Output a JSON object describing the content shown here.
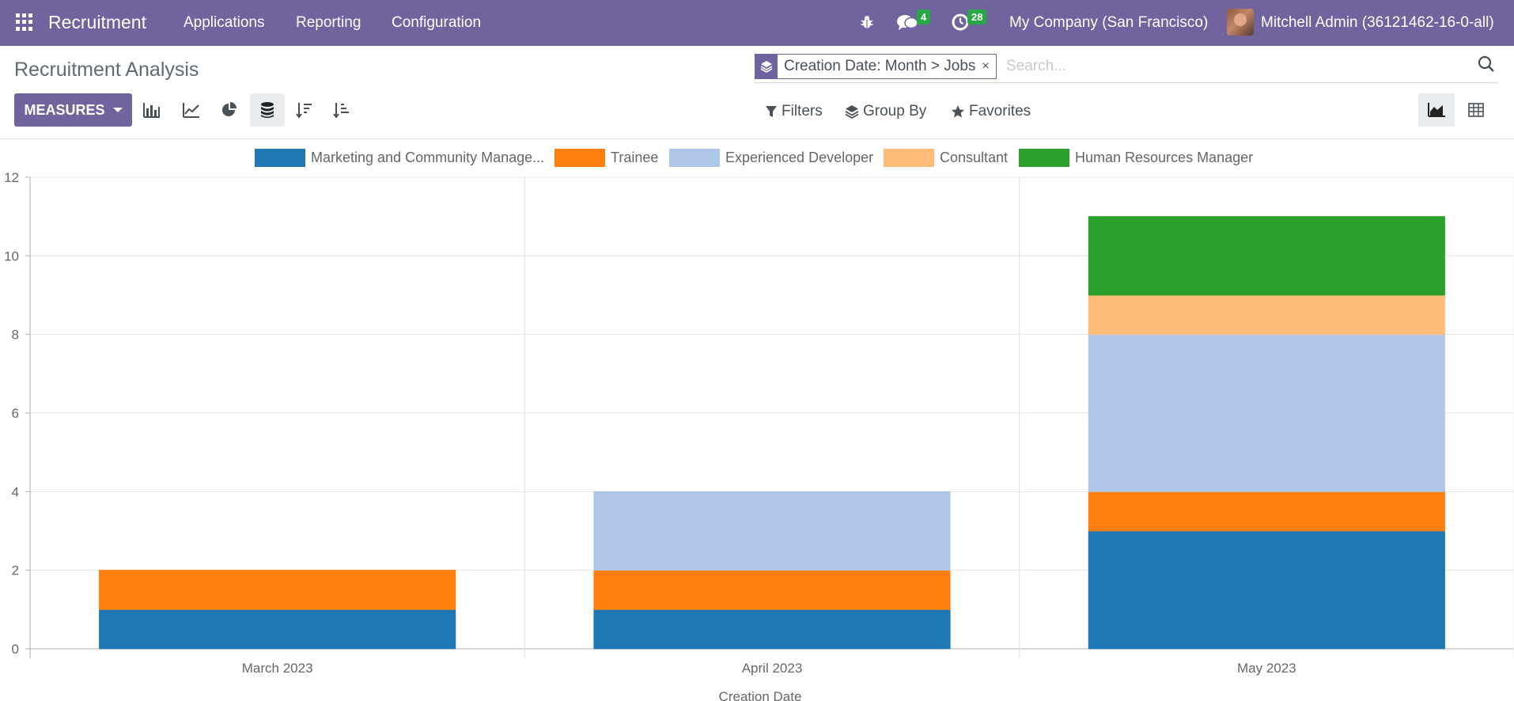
{
  "navbar": {
    "app_name": "Recruitment",
    "menus": [
      "Applications",
      "Reporting",
      "Configuration"
    ],
    "messages_count": "4",
    "activities_count": "28",
    "company": "My Company (San Francisco)",
    "user": "Mitchell Admin (36121462-16-0-all)"
  },
  "page": {
    "title": "Recruitment Analysis"
  },
  "search": {
    "facet": "Creation Date: Month > Jobs",
    "close": "×",
    "placeholder": "Search..."
  },
  "toolbar": {
    "measures_label": "MEASURES",
    "filters_label": "Filters",
    "group_by_label": "Group By",
    "favorites_label": "Favorites"
  },
  "colors": {
    "brand": "#71639e",
    "badge": "#28a745"
  },
  "chart_data": {
    "type": "bar",
    "stacked": true,
    "categories": [
      "March 2023",
      "April 2023",
      "May 2023"
    ],
    "series": [
      {
        "name": "Marketing and Community Manage...",
        "color": "#1f77b4",
        "values": [
          1,
          1,
          3
        ]
      },
      {
        "name": "Trainee",
        "color": "#ff7f0e",
        "values": [
          1,
          1,
          1
        ]
      },
      {
        "name": "Experienced Developer",
        "color": "#aec7e8",
        "values": [
          0,
          2,
          4
        ]
      },
      {
        "name": "Consultant",
        "color": "#ffbb78",
        "values": [
          0,
          0,
          1
        ]
      },
      {
        "name": "Human Resources Manager",
        "color": "#2ca02c",
        "values": [
          0,
          0,
          2
        ]
      }
    ],
    "xlabel": "Creation Date",
    "ylabel": "",
    "ylim": [
      0,
      12
    ],
    "yticks": [
      0,
      2,
      4,
      6,
      8,
      10,
      12
    ],
    "grid": true,
    "legend": "top-center"
  }
}
